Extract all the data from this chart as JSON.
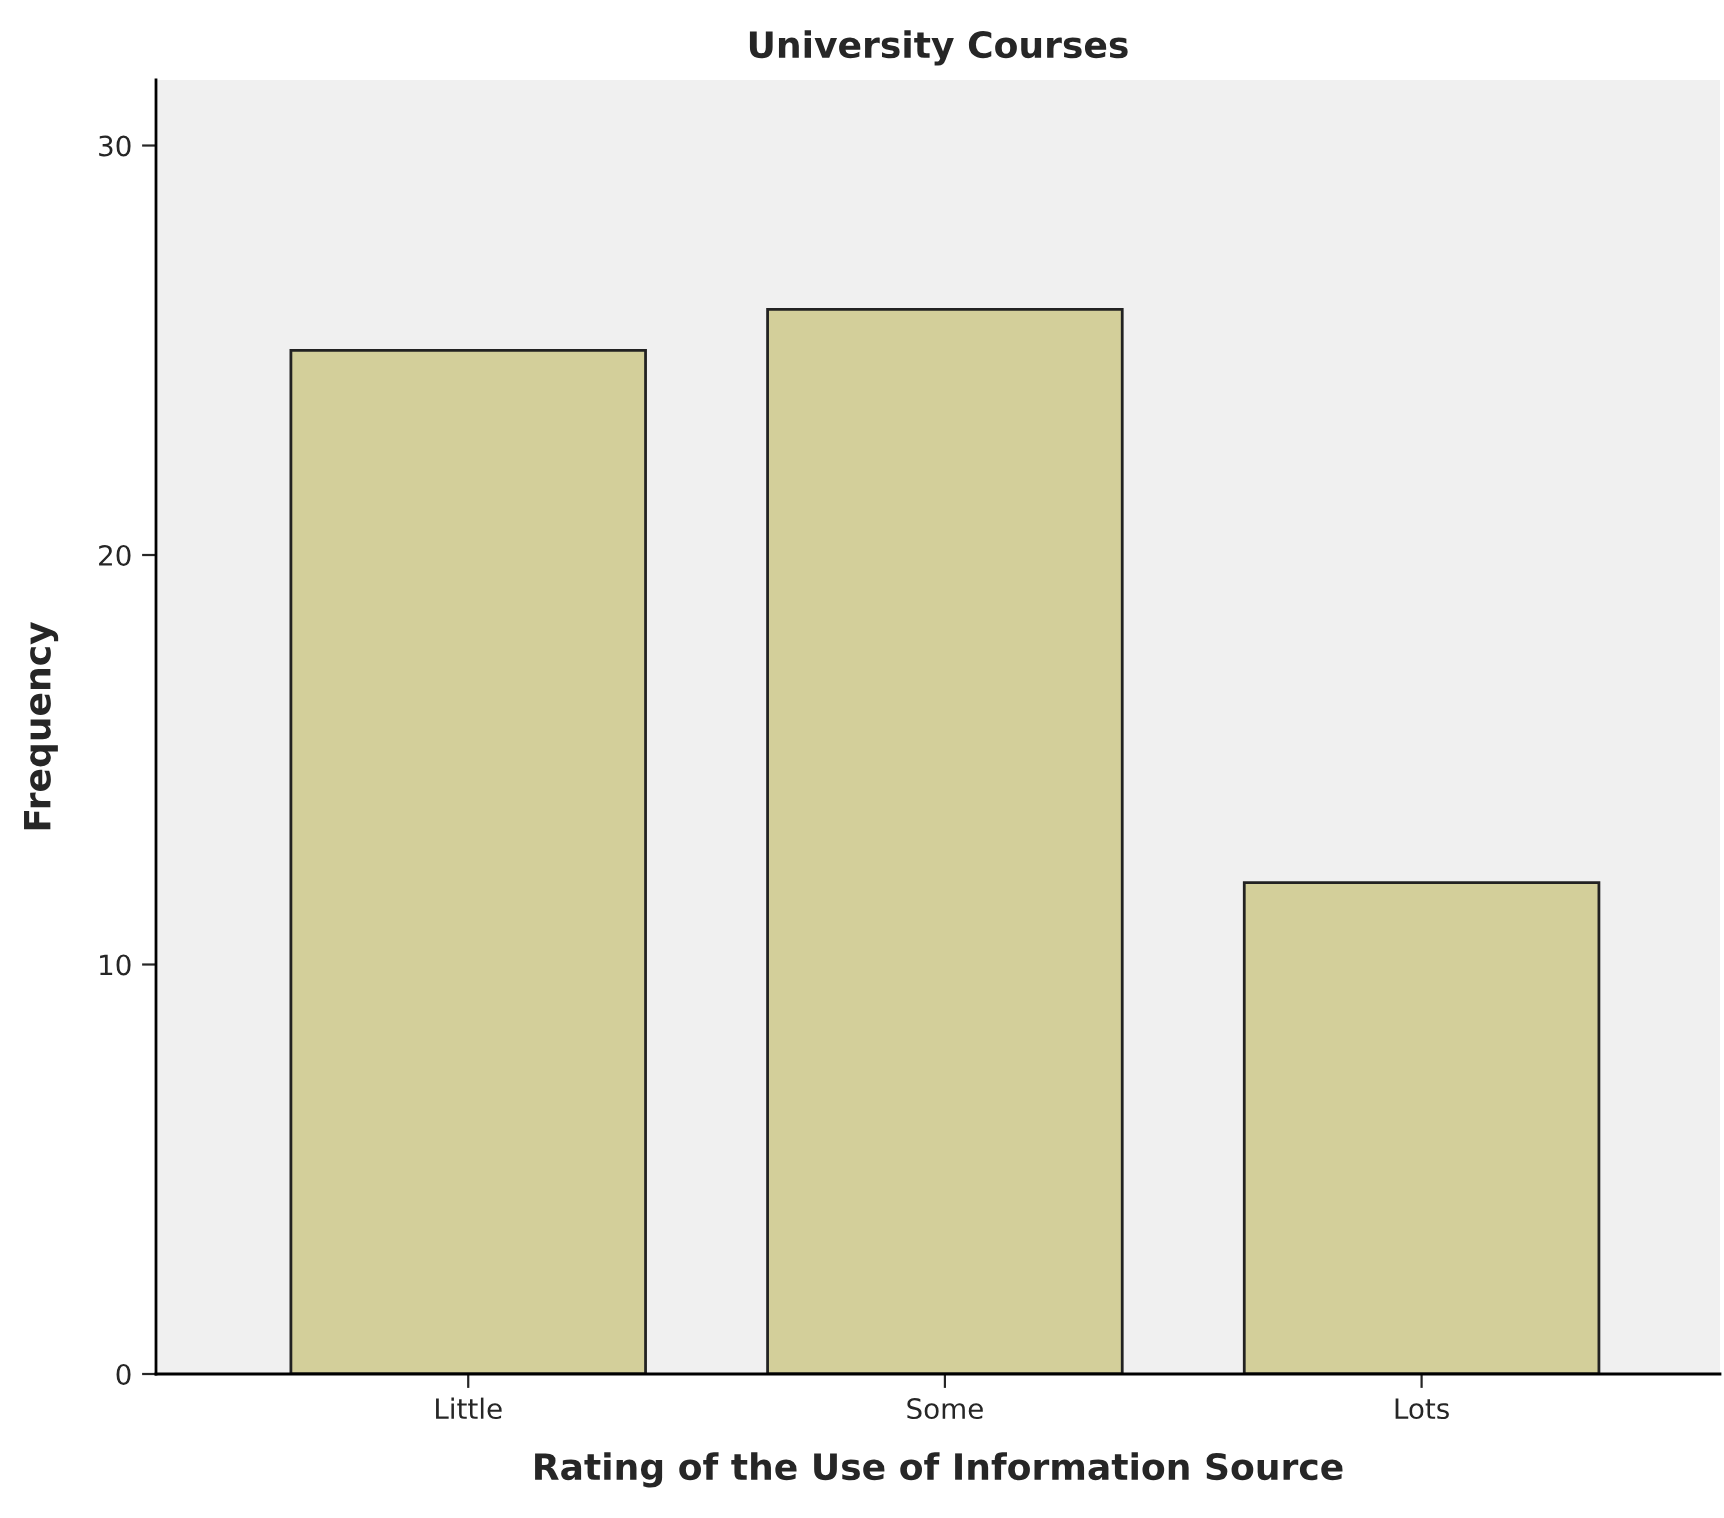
{
  "chart_data": {
    "type": "bar",
    "title": "University Courses",
    "xlabel": "Rating of the Use of Information Source",
    "ylabel": "Frequency",
    "categories": [
      "Little",
      "Some",
      "Lots"
    ],
    "values": [
      25,
      26,
      12
    ],
    "color": "#d3cf9a",
    "ylim": [
      0,
      31.6
    ],
    "yticks": [
      0,
      10,
      20,
      30
    ],
    "grid": false,
    "legend": false
  }
}
